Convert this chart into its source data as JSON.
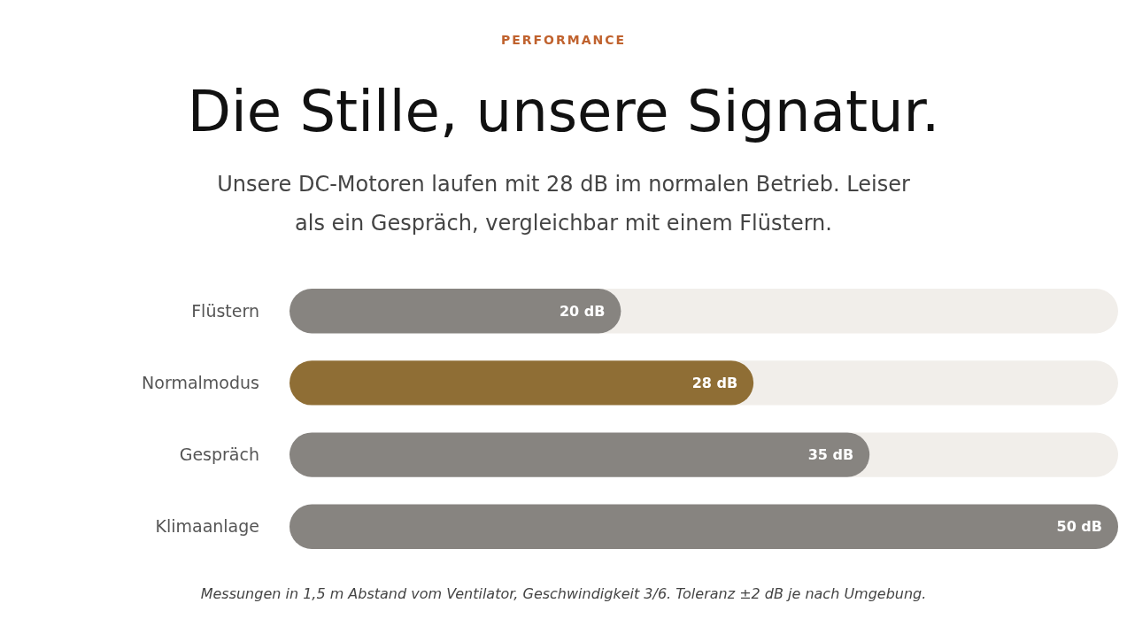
{
  "chart_data": {
    "type": "bar",
    "orientation": "horizontal",
    "title": "Die Stille, unsere Signatur.",
    "subtitle": "Unsere DC-Motoren laufen mit 28 dB im normalen Betrieb. Leiser als ein Gespräch, vergleichbar mit einem Flüstern.",
    "annotations": [
      "PERFORMANCE",
      "Messungen in 1,5 m Abstand vom Ventilator, Geschwindigkeit 3/6. Toleranz ±2 dB je nach Umgebung."
    ],
    "categories": [
      "Flüstern",
      "Normalmodus",
      "Gespräch",
      "Klimaanlage"
    ],
    "values": [
      20,
      28,
      35,
      50
    ],
    "colors": [
      "#878480",
      "#8f6e35",
      "#878480",
      "#878480"
    ],
    "value_labels": [
      "20 dB",
      "28 dB",
      "35 dB",
      "50 dB"
    ],
    "xlim": [
      0,
      50
    ],
    "tick_labels": "y"
  }
}
